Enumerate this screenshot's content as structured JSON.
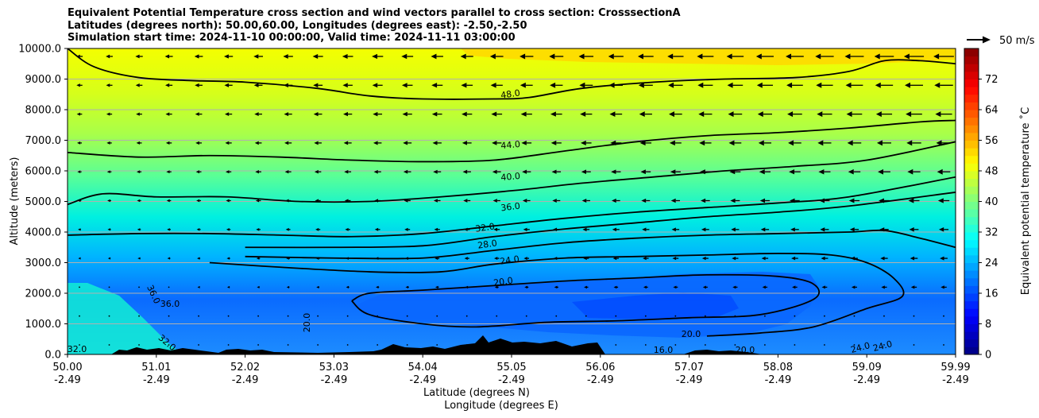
{
  "title_lines": [
    "Equivalent Potential Temperature cross section and wind vectors parallel to cross section: CrosssectionA",
    "Latitudes (degrees north): 50.00,60.00, Longitudes (degrees east): -2.50,-2.50",
    "Simulation start time: 2024-11-10 00:00:00, Valid time: 2024-11-11 03:00:00"
  ],
  "chart_data": {
    "type": "contour",
    "ylabel": "Altitude (meters)",
    "xlabel_lines": [
      "Latitude (degrees N)",
      "Longitude (degrees E)"
    ],
    "ylim": [
      0,
      10000
    ],
    "yticks": [
      "0.0",
      "1000.0",
      "2000.0",
      "3000.0",
      "4000.0",
      "5000.0",
      "6000.0",
      "7000.0",
      "8000.0",
      "9000.0",
      "10000.0"
    ],
    "xticks": [
      {
        "lat": "50.00",
        "lon": "-2.49"
      },
      {
        "lat": "51.01",
        "lon": "-2.49"
      },
      {
        "lat": "52.02",
        "lon": "-2.49"
      },
      {
        "lat": "53.03",
        "lon": "-2.49"
      },
      {
        "lat": "54.04",
        "lon": "-2.49"
      },
      {
        "lat": "55.05",
        "lon": "-2.49"
      },
      {
        "lat": "56.06",
        "lon": "-2.49"
      },
      {
        "lat": "57.07",
        "lon": "-2.49"
      },
      {
        "lat": "58.08",
        "lon": "-2.49"
      },
      {
        "lat": "59.09",
        "lon": "-2.49"
      },
      {
        "lat": "59.99",
        "lon": "-2.49"
      }
    ],
    "grid": "horizontal",
    "colorbar": {
      "label": "Equivalent potential temperature $^\\circ$C",
      "label_text": "Equivalent potential temperature ˚C",
      "range": [
        0,
        80
      ],
      "ticks": [
        "0",
        "8",
        "16",
        "24",
        "32",
        "40",
        "48",
        "56",
        "64",
        "72"
      ],
      "colormap": "jet"
    },
    "quiver_key": "50 m/s",
    "contour_labels": [
      "48.0",
      "44.0",
      "40.0",
      "36.0",
      "32.0",
      "28.0",
      "24.0",
      "20.0",
      "36.0",
      "36.0",
      "20.0",
      "32.0",
      "20.0",
      "16.0",
      "20.0",
      "24.0",
      "24.0",
      "32.0"
    ],
    "contours": [
      {
        "level": 48,
        "label": "48.0",
        "pts": [
          [
            0,
            10000
          ],
          [
            3,
            9400
          ],
          [
            8,
            9050
          ],
          [
            14,
            8950
          ],
          [
            20,
            8900
          ],
          [
            28,
            8700
          ],
          [
            34,
            8450
          ],
          [
            40,
            8350
          ],
          [
            48,
            8350
          ],
          [
            52,
            8400
          ],
          [
            58,
            8700
          ],
          [
            66,
            8900
          ],
          [
            74,
            9000
          ],
          [
            82,
            9050
          ],
          [
            88,
            9250
          ],
          [
            92,
            9600
          ],
          [
            96,
            9600
          ],
          [
            100,
            9500
          ]
        ]
      },
      {
        "level": 44,
        "label": "44.0",
        "pts": [
          [
            0,
            6600
          ],
          [
            8,
            6450
          ],
          [
            16,
            6500
          ],
          [
            24,
            6450
          ],
          [
            32,
            6350
          ],
          [
            40,
            6300
          ],
          [
            48,
            6350
          ],
          [
            56,
            6650
          ],
          [
            64,
            6950
          ],
          [
            72,
            7150
          ],
          [
            80,
            7250
          ],
          [
            88,
            7400
          ],
          [
            96,
            7600
          ],
          [
            100,
            7650
          ]
        ]
      },
      {
        "level": 40,
        "label": "40.0",
        "pts": [
          [
            0,
            4900
          ],
          [
            4,
            5250
          ],
          [
            10,
            5150
          ],
          [
            18,
            5150
          ],
          [
            26,
            5000
          ],
          [
            34,
            5000
          ],
          [
            42,
            5150
          ],
          [
            50,
            5350
          ],
          [
            58,
            5600
          ],
          [
            66,
            5800
          ],
          [
            74,
            6000
          ],
          [
            82,
            6150
          ],
          [
            90,
            6350
          ],
          [
            100,
            6950
          ]
        ]
      },
      {
        "level": 36,
        "label": "36.0",
        "pts": [
          [
            0,
            3900
          ],
          [
            8,
            3950
          ],
          [
            16,
            3950
          ],
          [
            24,
            3900
          ],
          [
            32,
            3850
          ],
          [
            40,
            3950
          ],
          [
            48,
            4200
          ],
          [
            56,
            4450
          ],
          [
            64,
            4650
          ],
          [
            72,
            4800
          ],
          [
            80,
            4950
          ],
          [
            88,
            5150
          ],
          [
            100,
            5800
          ]
        ]
      },
      {
        "level": 32,
        "label": "32.0",
        "pts": [
          [
            20,
            3500
          ],
          [
            30,
            3500
          ],
          [
            40,
            3550
          ],
          [
            48,
            3850
          ],
          [
            56,
            4100
          ],
          [
            64,
            4300
          ],
          [
            72,
            4500
          ],
          [
            80,
            4650
          ],
          [
            88,
            4850
          ],
          [
            100,
            5300
          ]
        ]
      },
      {
        "level": 28,
        "label": "28.0",
        "pts": [
          [
            20,
            3200
          ],
          [
            30,
            3150
          ],
          [
            40,
            3150
          ],
          [
            48,
            3400
          ],
          [
            56,
            3650
          ],
          [
            64,
            3800
          ],
          [
            72,
            3900
          ],
          [
            80,
            3950
          ],
          [
            88,
            4000
          ],
          [
            92,
            4050
          ],
          [
            96,
            3800
          ],
          [
            100,
            3500
          ]
        ]
      },
      {
        "level": 24,
        "label": "24.0",
        "pts": [
          [
            16,
            3000
          ],
          [
            24,
            2850
          ],
          [
            34,
            2700
          ],
          [
            42,
            2700
          ],
          [
            48,
            2950
          ],
          [
            56,
            3150
          ],
          [
            64,
            3200
          ],
          [
            72,
            3250
          ],
          [
            80,
            3300
          ],
          [
            86,
            3250
          ],
          [
            90,
            3000
          ],
          [
            93,
            2500
          ],
          [
            94,
            1900
          ],
          [
            90,
            1500
          ],
          [
            84,
            900
          ],
          [
            78,
            700
          ],
          [
            72,
            600
          ]
        ]
      },
      {
        "level": 20,
        "label": "20.0",
        "pts": [
          [
            32,
            1750
          ],
          [
            34,
            2000
          ],
          [
            40,
            2100
          ],
          [
            48,
            2250
          ],
          [
            56,
            2400
          ],
          [
            64,
            2500
          ],
          [
            72,
            2600
          ],
          [
            80,
            2550
          ],
          [
            84,
            2300
          ],
          [
            84,
            1800
          ],
          [
            78,
            1300
          ],
          [
            70,
            1200
          ],
          [
            62,
            1100
          ],
          [
            54,
            1050
          ],
          [
            46,
            900
          ],
          [
            40,
            1000
          ],
          [
            34,
            1300
          ],
          [
            32,
            1750
          ]
        ]
      }
    ]
  }
}
